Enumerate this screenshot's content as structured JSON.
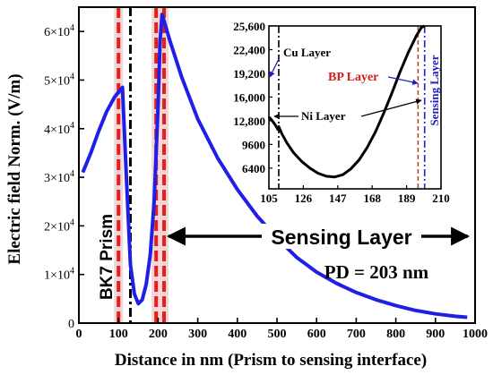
{
  "chart_data": [
    {
      "type": "line",
      "xlabel": "Distance in nm (Prism to sensing interface)",
      "ylabel": "Electric field Norm. (V/m)",
      "xlim": [
        0,
        1000
      ],
      "ylim": [
        0,
        65000
      ],
      "x_ticks": [
        "0",
        "100",
        "200",
        "300",
        "400",
        "500",
        "600",
        "700",
        "800",
        "900",
        "1000"
      ],
      "y_ticks": [
        {
          "mant": "0",
          "exp": ""
        },
        {
          "mant": "1×10",
          "exp": "4"
        },
        {
          "mant": "2×10",
          "exp": "4"
        },
        {
          "mant": "3×10",
          "exp": "4"
        },
        {
          "mant": "4×10",
          "exp": "4"
        },
        {
          "mant": "5×10",
          "exp": "4"
        },
        {
          "mant": "6×10",
          "exp": "4"
        }
      ],
      "series": [
        {
          "color": "#1f1fe6",
          "x": [
            10,
            30,
            50,
            70,
            90,
            110,
            120,
            130,
            140,
            150,
            160,
            170,
            180,
            190,
            200,
            205,
            210,
            230,
            260,
            300,
            350,
            400,
            450,
            500,
            550,
            600,
            650,
            700,
            750,
            800,
            850,
            900,
            950,
            980
          ],
          "y": [
            31000,
            35000,
            39500,
            43500,
            46500,
            48500,
            30000,
            12000,
            6000,
            4000,
            4800,
            8000,
            14000,
            25000,
            45000,
            58000,
            63500,
            58000,
            50500,
            42000,
            34000,
            27500,
            22000,
            17500,
            13500,
            10500,
            8200,
            6300,
            4800,
            3600,
            2600,
            1900,
            1400,
            1200
          ]
        }
      ],
      "boundaries": [
        {
          "x": 100,
          "color": "#e02020",
          "style": "dashed",
          "shaded": true
        },
        {
          "x": 130,
          "color": "#000000",
          "style": "dashdot",
          "shaded": false
        },
        {
          "x": 195,
          "color": "#e02020",
          "style": "dashed",
          "shaded": true
        },
        {
          "x": 215,
          "color": "#e02020",
          "style": "dashed",
          "shaded": true
        }
      ],
      "annotations": {
        "prism_label": "BK7 Prism",
        "sensing_label": "Sensing Layer",
        "pd_label": "PD = 203 nm"
      }
    },
    {
      "type": "line",
      "xlim": [
        105,
        210
      ],
      "ylim": [
        3600,
        25600
      ],
      "x_ticks": [
        "105",
        "126",
        "147",
        "168",
        "189",
        "210"
      ],
      "y_ticks": [
        "6400",
        "9600",
        "12,800",
        "16,000",
        "19,200",
        "22,400",
        "25,600"
      ],
      "series": [
        {
          "color": "#000000",
          "x": [
            105,
            107,
            109,
            110.5,
            111,
            113,
            116,
            120,
            125,
            130,
            135,
            140,
            145,
            150,
            155,
            160,
            165,
            170,
            175,
            180,
            185,
            190,
            195,
            198,
            200
          ],
          "y": [
            13300,
            12800,
            12200,
            11600,
            12000,
            11000,
            9800,
            8500,
            7300,
            6400,
            5700,
            5300,
            5200,
            5500,
            6300,
            7500,
            9200,
            11300,
            13800,
            16500,
            19400,
            22000,
            24300,
            25400,
            26000
          ]
        }
      ],
      "boundaries": [
        {
          "x": 111,
          "color": "#000000",
          "style": "dashdot"
        },
        {
          "x": 196,
          "color": "#b05030",
          "style": "dashed"
        },
        {
          "x": 200,
          "color": "#2020c0",
          "style": "dashdot"
        }
      ],
      "labels": {
        "cu": "Cu  Layer",
        "bp": "BP  Layer",
        "ni": "Ni Layer",
        "sensing": "Sensing Layer"
      }
    }
  ]
}
